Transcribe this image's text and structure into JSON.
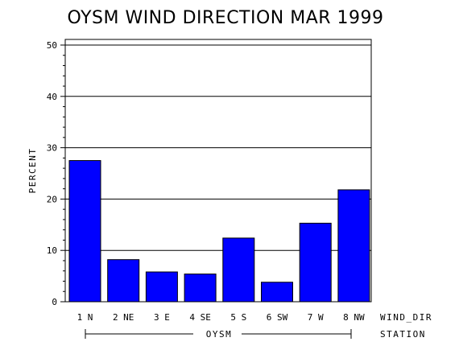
{
  "chart_data": {
    "type": "bar",
    "title": "OYSM WIND DIRECTION MAR 1999",
    "ylabel": "PERCENT",
    "xlabel": "WIND_DIR",
    "group_axis_label": "STATION",
    "group_label": "OYSM",
    "ylim": [
      0,
      50
    ],
    "yticks": [
      "0",
      "10",
      "20",
      "30",
      "40",
      "50"
    ],
    "categories": [
      "1 N",
      "2 NE",
      "3 E",
      "4 SE",
      "5 S",
      "6 SW",
      "7 W",
      "8 NW"
    ],
    "values": [
      27.5,
      8.2,
      5.8,
      5.4,
      12.4,
      3.8,
      15.3,
      21.8
    ],
    "grid": true,
    "bar_color": "#0000FF"
  }
}
